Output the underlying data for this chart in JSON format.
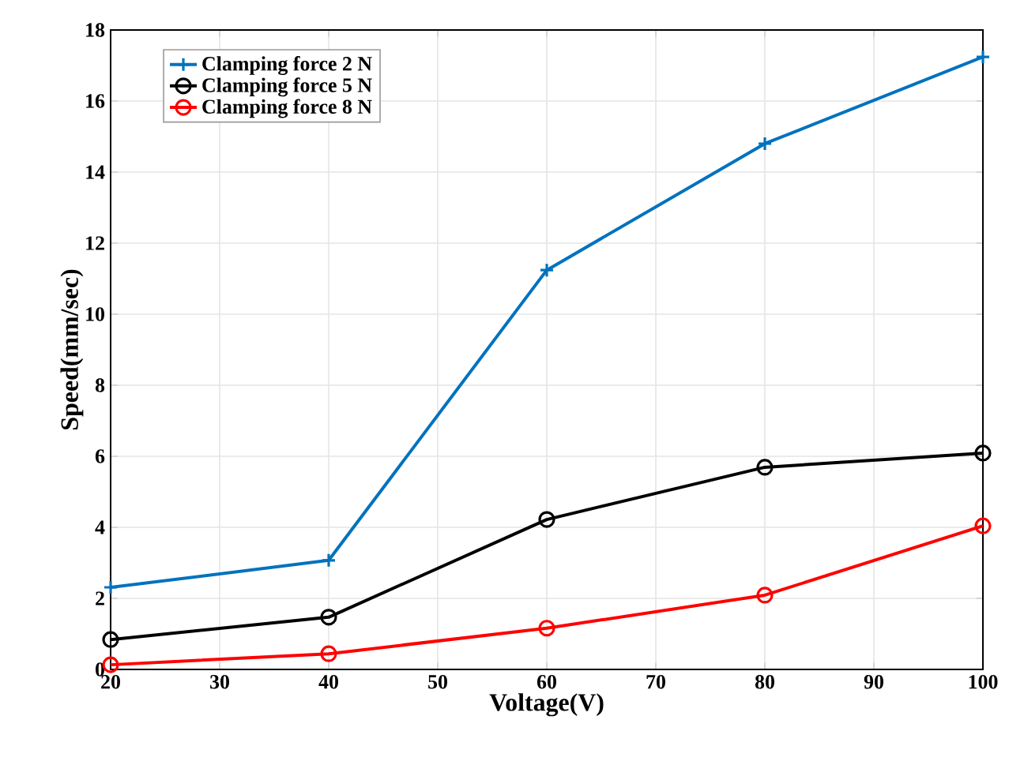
{
  "chart_data": {
    "type": "line",
    "xlabel": "Voltage(V)",
    "ylabel": "Speed(mm/sec)",
    "x": [
      20,
      40,
      60,
      80,
      100
    ],
    "series": [
      {
        "name": "Clamping force 2 N",
        "color": "#0072bd",
        "marker": "cross",
        "values": [
          2.31,
          3.07,
          11.24,
          14.8,
          17.24
        ]
      },
      {
        "name": "Clamping force 5 N",
        "color": "#000000",
        "marker": "circle",
        "values": [
          0.84,
          1.47,
          4.22,
          5.69,
          6.09
        ]
      },
      {
        "name": "Clamping force 8 N",
        "color": "#ff0000",
        "marker": "circle",
        "values": [
          0.13,
          0.44,
          1.16,
          2.09,
          4.04
        ]
      }
    ],
    "xlim": [
      20,
      100
    ],
    "xticks": [
      20,
      30,
      40,
      50,
      60,
      70,
      80,
      90,
      100
    ],
    "ylim": [
      0,
      18
    ],
    "yticks": [
      0,
      2,
      4,
      6,
      8,
      10,
      12,
      14,
      16,
      18
    ],
    "grid": true,
    "legend": "top left",
    "line_style": "solid"
  }
}
